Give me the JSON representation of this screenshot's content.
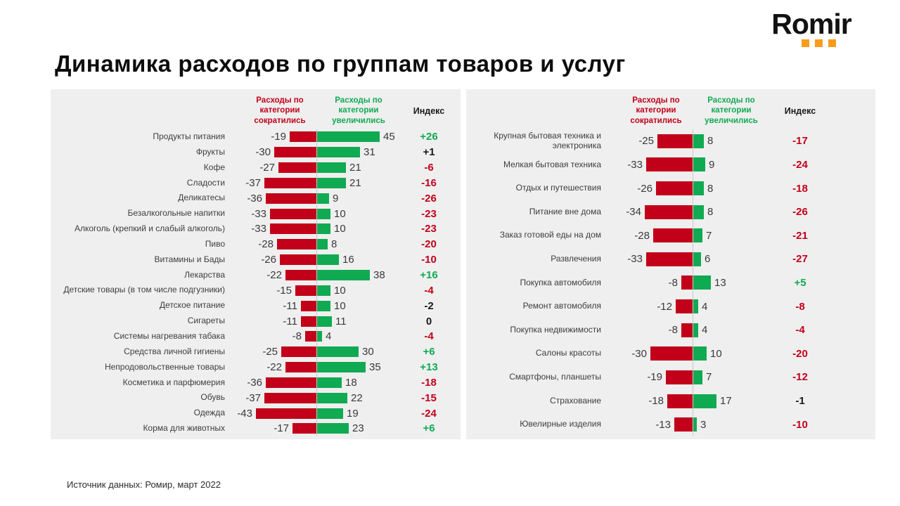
{
  "logo": {
    "text": "Romir",
    "dot_color": "#f89c1c"
  },
  "title": "Динамика расходов по группам товаров и услуг",
  "source": "Источник данных: Ромир, март 2022",
  "columns": {
    "decreased": "Расходы по категории сократились",
    "increased": "Расходы по категории увеличились",
    "index": "Индекс"
  },
  "colors": {
    "decrease": "#c20019",
    "increase": "#10aa52",
    "index_positive": "#10aa52",
    "index_negative": "#c20019",
    "index_neutral": "#1a1a1a",
    "panel_bg": "#efefef"
  },
  "chart_data": [
    {
      "type": "bar",
      "panel": "left",
      "orientation": "horizontal-diverging",
      "xlim": [
        -60,
        60
      ],
      "grid": false,
      "categories": [
        "Продукты питания",
        "Фрукты",
        "Кофе",
        "Сладости",
        "Деликатесы",
        "Безалкогольные напитки",
        "Алкоголь (крепкий и слабый алкоголь)",
        "Пиво",
        "Витамины и Бады",
        "Лекарства",
        "Детские товары (в том числе подгузники)",
        "Детское питание",
        "Сигареты",
        "Системы нагревания табака",
        "Средства личной гигиены",
        "Непродовольственные товары",
        "Косметика и парфюмерия",
        "Обувь",
        "Одежда",
        "Корма для животных"
      ],
      "series": [
        {
          "name": "Расходы по категории сократились",
          "values": [
            -19,
            -30,
            -27,
            -37,
            -36,
            -33,
            -33,
            -28,
            -26,
            -22,
            -15,
            -11,
            -11,
            -8,
            -25,
            -22,
            -36,
            -37,
            -43,
            -17
          ]
        },
        {
          "name": "Расходы по категории увеличились",
          "values": [
            45,
            31,
            21,
            21,
            9,
            10,
            10,
            8,
            16,
            38,
            10,
            10,
            11,
            4,
            30,
            35,
            18,
            22,
            19,
            23
          ]
        },
        {
          "name": "Индекс",
          "values": [
            26,
            1,
            -6,
            -16,
            -26,
            -23,
            -23,
            -20,
            -10,
            16,
            -4,
            -2,
            0,
            -4,
            6,
            13,
            -18,
            -15,
            -24,
            6
          ]
        }
      ]
    },
    {
      "type": "bar",
      "panel": "right",
      "orientation": "horizontal-diverging",
      "xlim": [
        -60,
        60
      ],
      "grid": false,
      "categories": [
        "Крупная бытовая техника и электроника",
        "Мелкая бытовая техника",
        "Отдых и путешествия",
        "Питание вне дома",
        "Заказ готовой еды на дом",
        "Развлечения",
        "Покупка автомобиля",
        "Ремонт автомобиля",
        "Покупка недвижимости",
        "Салоны красоты",
        "Смартфоны, планшеты",
        "Страхование",
        "Ювелирные изделия"
      ],
      "series": [
        {
          "name": "Расходы по категории сократились",
          "values": [
            -25,
            -33,
            -26,
            -34,
            -28,
            -33,
            -8,
            -12,
            -8,
            -30,
            -19,
            -18,
            -13
          ]
        },
        {
          "name": "Расходы по категории увеличились",
          "values": [
            8,
            9,
            8,
            8,
            7,
            6,
            13,
            4,
            4,
            10,
            7,
            17,
            3
          ]
        },
        {
          "name": "Индекс",
          "values": [
            -17,
            -24,
            -18,
            -26,
            -21,
            -27,
            5,
            -8,
            -4,
            -20,
            -12,
            -1,
            -10
          ]
        }
      ]
    }
  ]
}
